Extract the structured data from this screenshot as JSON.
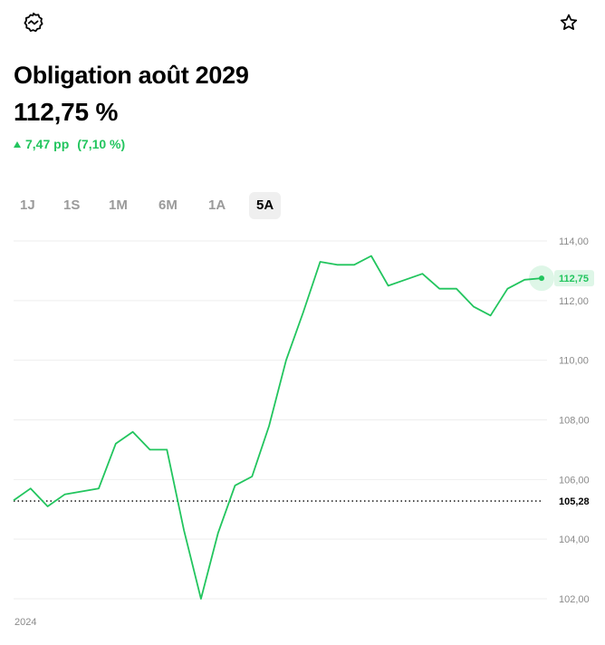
{
  "header": {
    "title": "Obligation août 2029",
    "price": "112,75 %",
    "change_abs": "7,47 pp",
    "change_pct": "(7,10 %)",
    "icons": {
      "left": "chart-trend-icon",
      "right": "star-outline-icon"
    }
  },
  "tabs": [
    {
      "label": "1J",
      "active": false
    },
    {
      "label": "1S",
      "active": false
    },
    {
      "label": "1M",
      "active": false
    },
    {
      "label": "6M",
      "active": false
    },
    {
      "label": "1A",
      "active": false
    },
    {
      "label": "5A",
      "active": true
    }
  ],
  "colors": {
    "line": "#22c55e",
    "grid": "#eeeeee",
    "text_muted": "#8a8a8a",
    "tab_active_bg": "#efefef"
  },
  "chart_data": {
    "type": "line",
    "title": "",
    "xlabel": "",
    "ylabel": "",
    "x_labels": [
      "2024"
    ],
    "ylim": [
      101.8,
      114.2
    ],
    "yticks": [
      114,
      112,
      110,
      108,
      106,
      104,
      102
    ],
    "ytick_labels": [
      "114,00",
      "112,00",
      "110,00",
      "108,00",
      "106,00",
      "104,00",
      "102,00"
    ],
    "reference": {
      "value": 105.28,
      "label": "105,28"
    },
    "last": {
      "value": 112.75,
      "label": "112,75"
    },
    "grid": true,
    "series": [
      {
        "values": [
          105.3,
          105.7,
          105.1,
          105.5,
          105.6,
          105.7,
          107.2,
          107.6,
          107.0,
          107.0,
          104.3,
          102.0,
          104.2,
          105.8,
          106.1,
          107.8,
          110.0,
          111.6,
          113.3,
          113.2,
          113.2,
          113.5,
          112.5,
          112.7,
          112.9,
          112.4,
          112.4,
          111.8,
          111.5,
          112.4,
          112.7,
          112.75
        ]
      }
    ]
  }
}
